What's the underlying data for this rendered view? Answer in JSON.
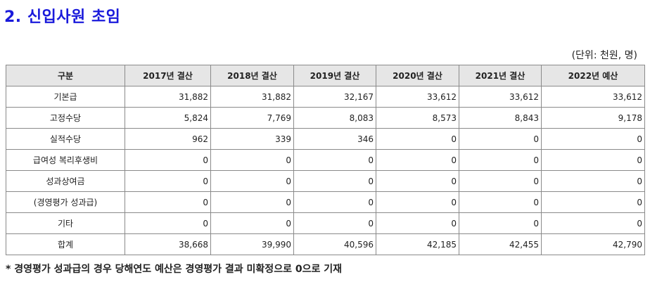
{
  "title": "2. 신입사원 초임",
  "unit": "(단위: 천원, 명)",
  "table": {
    "headers": [
      "구분",
      "2017년 결산",
      "2018년 결산",
      "2019년 결산",
      "2020년 결산",
      "2021년 결산",
      "2022년 예산"
    ],
    "rows": [
      {
        "label": "기본급",
        "values": [
          "31,882",
          "31,882",
          "32,167",
          "33,612",
          "33,612",
          "33,612"
        ]
      },
      {
        "label": "고정수당",
        "values": [
          "5,824",
          "7,769",
          "8,083",
          "8,573",
          "8,843",
          "9,178"
        ]
      },
      {
        "label": "실적수당",
        "values": [
          "962",
          "339",
          "346",
          "0",
          "0",
          "0"
        ]
      },
      {
        "label": "급여성 복리후생비",
        "values": [
          "0",
          "0",
          "0",
          "0",
          "0",
          "0"
        ]
      },
      {
        "label": "성과상여금",
        "values": [
          "0",
          "0",
          "0",
          "0",
          "0",
          "0"
        ]
      },
      {
        "label": "(경영평가 성과급)",
        "values": [
          "0",
          "0",
          "0",
          "0",
          "0",
          "0"
        ]
      },
      {
        "label": "기타",
        "values": [
          "0",
          "0",
          "0",
          "0",
          "0",
          "0"
        ]
      },
      {
        "label": "합계",
        "values": [
          "38,668",
          "39,990",
          "40,596",
          "42,185",
          "42,455",
          "42,790"
        ]
      }
    ]
  },
  "note": "* 경영평가 성과급의 경우 당해연도 예산은 경영평가 결과 미확정으로 0으로 기재"
}
